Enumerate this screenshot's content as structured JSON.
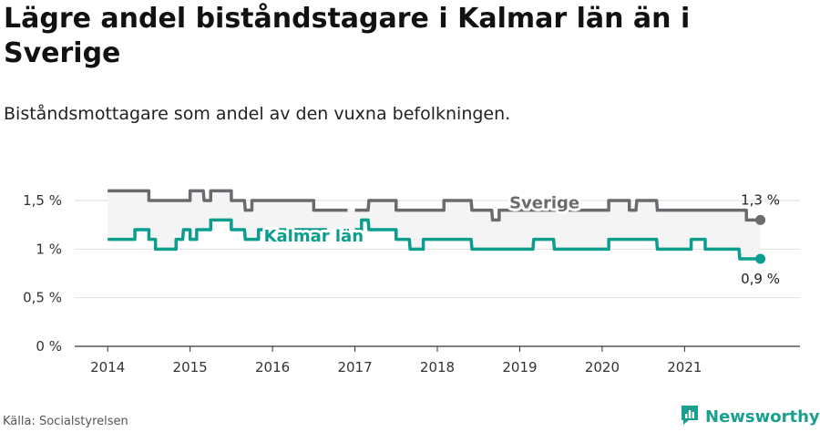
{
  "title": "Lägre andel biståndstagare i Kalmar län än i Sverige",
  "subtitle": "Biståndsmottagare som andel av den vuxna befolkningen.",
  "source": "Källa: Socialstyrelsen",
  "brand": {
    "name": "Newsworthy",
    "icon": "newsworthy-logo-icon",
    "color": "#1aa08e"
  },
  "colors": {
    "sverige": "#6b6b6f",
    "kalmar": "#0b9e8e",
    "band": "#f4f4f4",
    "grid": "#dedede"
  },
  "chart_data": {
    "type": "line",
    "title": "Lägre andel biståndstagare i Kalmar län än i Sverige",
    "subtitle": "Biståndsmottagare som andel av den vuxna befolkningen.",
    "xlabel": "",
    "ylabel": "",
    "x_range": [
      2013.6,
      2022.4
    ],
    "ylim": [
      0,
      1.8
    ],
    "y_ticks": [
      0,
      0.5,
      1,
      1.5
    ],
    "y_tick_labels": [
      "0 %",
      "0,5 %",
      "1 %",
      "1,5 %"
    ],
    "x_ticks": [
      2014,
      2015,
      2016,
      2017,
      2018,
      2019,
      2020,
      2021
    ],
    "x_tick_labels": [
      "2014",
      "2015",
      "2016",
      "2017",
      "2018",
      "2019",
      "2020",
      "2021"
    ],
    "grid": true,
    "shaded_band_between_series": true,
    "series": [
      {
        "name": "Sverige",
        "color": "#6b6b6f",
        "x": [
          2014.0,
          2014.08,
          2014.17,
          2014.25,
          2014.33,
          2014.42,
          2014.5,
          2014.58,
          2014.67,
          2014.75,
          2014.83,
          2014.92,
          2015.0,
          2015.08,
          2015.17,
          2015.25,
          2015.33,
          2015.42,
          2015.5,
          2015.58,
          2015.67,
          2015.75,
          2015.83,
          2015.92,
          2016.0,
          2016.08,
          2016.17,
          2016.25,
          2016.33,
          2016.42,
          2016.5,
          2016.58,
          2016.67,
          2016.75,
          2016.83,
          2016.92,
          2017.0,
          2017.08,
          2017.17,
          2017.25,
          2017.33,
          2017.42,
          2017.5,
          2017.58,
          2017.67,
          2017.75,
          2017.83,
          2017.92,
          2018.0,
          2018.08,
          2018.17,
          2018.25,
          2018.33,
          2018.42,
          2018.5,
          2018.58,
          2018.67,
          2018.75,
          2018.83,
          2018.92,
          2019.0,
          2019.08,
          2019.17,
          2019.25,
          2019.33,
          2019.42,
          2019.5,
          2019.58,
          2019.67,
          2019.75,
          2019.83,
          2019.92,
          2020.0,
          2020.08,
          2020.17,
          2020.25,
          2020.33,
          2020.42,
          2020.5,
          2020.58,
          2020.67,
          2020.75,
          2020.83,
          2020.92,
          2021.0,
          2021.08,
          2021.17,
          2021.25,
          2021.33,
          2021.42,
          2021.5,
          2021.58,
          2021.67,
          2021.75,
          2021.83,
          2021.92
        ],
        "values": [
          1.6,
          1.6,
          1.6,
          1.6,
          1.6,
          1.6,
          1.5,
          1.5,
          1.5,
          1.5,
          1.5,
          1.5,
          1.6,
          1.6,
          1.5,
          1.6,
          1.6,
          1.6,
          1.5,
          1.5,
          1.4,
          1.5,
          1.5,
          1.5,
          1.5,
          1.5,
          1.5,
          1.5,
          1.5,
          1.5,
          1.4,
          1.4,
          1.4,
          1.4,
          1.4,
          null,
          1.4,
          1.4,
          1.5,
          1.5,
          1.5,
          1.5,
          1.4,
          1.4,
          1.4,
          1.4,
          1.4,
          1.4,
          1.4,
          1.5,
          1.5,
          1.5,
          1.5,
          1.4,
          1.4,
          1.4,
          1.3,
          1.4,
          1.4,
          1.4,
          1.4,
          1.4,
          1.4,
          1.4,
          1.4,
          1.4,
          1.4,
          1.4,
          1.4,
          1.4,
          1.4,
          1.4,
          1.4,
          1.5,
          1.5,
          1.5,
          1.4,
          1.5,
          1.5,
          1.5,
          1.4,
          1.4,
          1.4,
          1.4,
          1.4,
          1.4,
          1.4,
          1.4,
          1.4,
          1.4,
          1.4,
          1.4,
          1.4,
          1.3,
          1.3,
          1.3
        ],
        "end_label": "1,3 %"
      },
      {
        "name": "Kalmar län",
        "color": "#0b9e8e",
        "x": [
          2014.0,
          2014.08,
          2014.17,
          2014.25,
          2014.33,
          2014.42,
          2014.5,
          2014.58,
          2014.67,
          2014.75,
          2014.83,
          2014.92,
          2015.0,
          2015.08,
          2015.17,
          2015.25,
          2015.33,
          2015.42,
          2015.5,
          2015.58,
          2015.67,
          2015.75,
          2015.83,
          2015.92,
          2016.0,
          2016.08,
          2016.17,
          2016.25,
          2016.33,
          2016.42,
          2016.5,
          2016.58,
          2016.67,
          2016.75,
          2016.83,
          2016.92,
          2017.0,
          2017.08,
          2017.17,
          2017.25,
          2017.33,
          2017.42,
          2017.5,
          2017.58,
          2017.67,
          2017.75,
          2017.83,
          2017.92,
          2018.0,
          2018.08,
          2018.17,
          2018.25,
          2018.33,
          2018.42,
          2018.5,
          2018.58,
          2018.67,
          2018.75,
          2018.83,
          2018.92,
          2019.0,
          2019.08,
          2019.17,
          2019.25,
          2019.33,
          2019.42,
          2019.5,
          2019.58,
          2019.67,
          2019.75,
          2019.83,
          2019.92,
          2020.0,
          2020.08,
          2020.17,
          2020.25,
          2020.33,
          2020.42,
          2020.5,
          2020.58,
          2020.67,
          2020.75,
          2020.83,
          2020.92,
          2021.0,
          2021.08,
          2021.17,
          2021.25,
          2021.33,
          2021.42,
          2021.5,
          2021.58,
          2021.67,
          2021.75,
          2021.83,
          2021.92
        ],
        "values": [
          1.1,
          1.1,
          1.1,
          1.1,
          1.2,
          1.2,
          1.1,
          1.0,
          1.0,
          1.0,
          1.1,
          1.2,
          1.1,
          1.2,
          1.2,
          1.3,
          1.3,
          1.3,
          1.2,
          1.2,
          1.1,
          1.1,
          1.2,
          1.2,
          1.2,
          1.2,
          1.2,
          1.2,
          1.2,
          1.2,
          1.2,
          1.2,
          null,
          null,
          null,
          null,
          1.2,
          1.3,
          1.2,
          1.2,
          1.2,
          1.2,
          1.1,
          1.1,
          1.0,
          1.0,
          1.1,
          1.1,
          1.1,
          1.1,
          1.1,
          1.1,
          1.1,
          1.0,
          1.0,
          1.0,
          1.0,
          1.0,
          1.0,
          1.0,
          1.0,
          1.0,
          1.1,
          1.1,
          1.1,
          1.0,
          1.0,
          1.0,
          1.0,
          1.0,
          1.0,
          1.0,
          1.0,
          1.1,
          1.1,
          1.1,
          1.1,
          1.1,
          1.1,
          1.1,
          1.0,
          1.0,
          1.0,
          1.0,
          1.0,
          1.1,
          1.1,
          1.0,
          1.0,
          1.0,
          1.0,
          1.0,
          0.9,
          0.9,
          0.9,
          0.9
        ],
        "end_label": "0,9 %"
      }
    ]
  }
}
